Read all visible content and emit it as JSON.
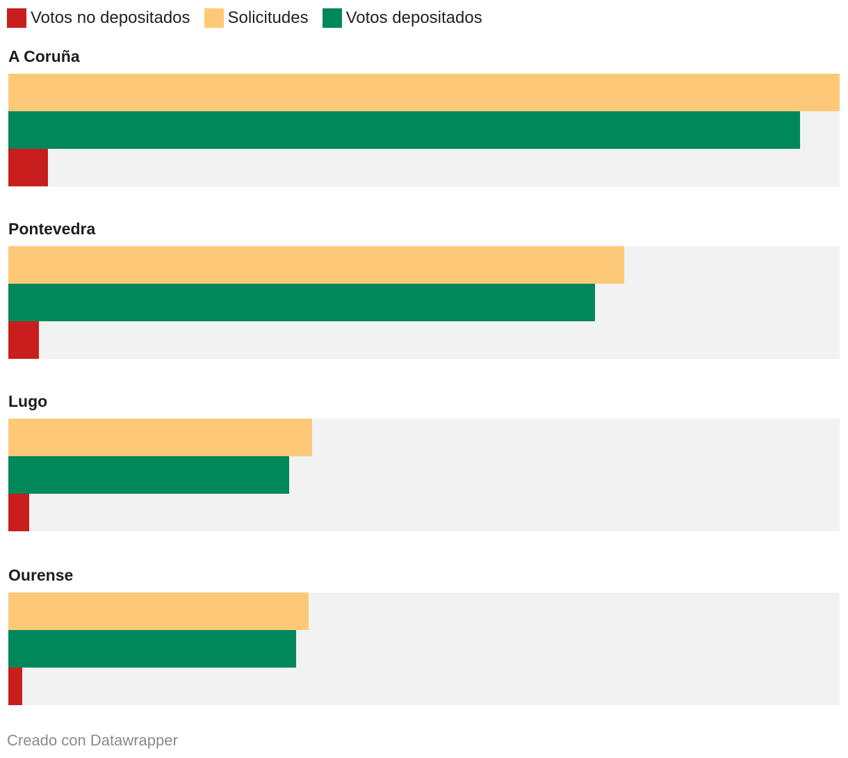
{
  "chart_data": {
    "type": "bar",
    "orientation": "horizontal",
    "legend": [
      {
        "name": "Votos no depositados",
        "color": "#c81e1e"
      },
      {
        "name": "Solicitudes",
        "color": "#fdc978"
      },
      {
        "name": "Votos depositados",
        "color": "#00875a"
      }
    ],
    "categories": [
      "A Coruña",
      "Pontevedra",
      "Lugo",
      "Ourense"
    ],
    "series": [
      {
        "name": "Solicitudes",
        "color": "#fdc978",
        "values": [
          100,
          74.1,
          36.5,
          36.1
        ]
      },
      {
        "name": "Votos depositados",
        "color": "#00875a",
        "values": [
          95.2,
          70.6,
          33.8,
          34.6
        ]
      },
      {
        "name": "Votos no depositados",
        "color": "#c81e1e",
        "values": [
          4.8,
          3.7,
          2.5,
          1.7
        ]
      }
    ],
    "xlim": [
      0,
      100
    ]
  },
  "footer": "Creado con Datawrapper"
}
